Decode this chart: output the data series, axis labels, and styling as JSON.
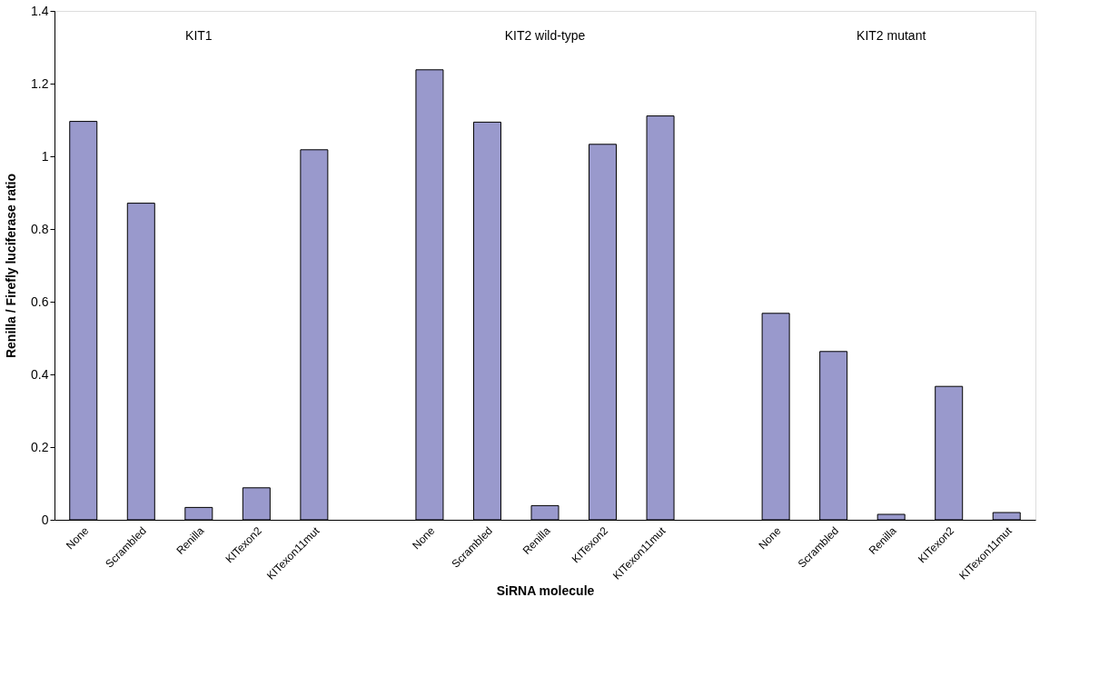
{
  "chart_data": {
    "type": "bar",
    "xlabel": "SiRNA molecule",
    "ylabel": "Renilla / Firefly luciferase ratio",
    "categories": [
      "None",
      "Scrambled",
      "Renilla",
      "KITexon2",
      "KITexon11mut",
      null,
      "None",
      "Scrambled",
      "Renilla",
      "KITexon2",
      "KITexon11mut",
      null,
      "None",
      "Scrambled",
      "Renilla",
      "KITexon2",
      "KITexon11mut"
    ],
    "series": [
      {
        "color": "#9999cc",
        "values": [
          1.096,
          0.871,
          0.034,
          0.088,
          1.018,
          null,
          1.238,
          1.094,
          0.039,
          1.033,
          1.111,
          null,
          0.568,
          0.463,
          0.015,
          0.367,
          0.02
        ]
      }
    ],
    "ylim": [
      0,
      1.4
    ],
    "yticks": [
      0,
      0.2,
      0.4,
      0.6,
      0.8,
      1,
      1.2,
      1.4
    ],
    "grid": false,
    "annotations": [
      "KIT1",
      "KIT2 wild-type",
      "KIT2 mutant"
    ]
  }
}
